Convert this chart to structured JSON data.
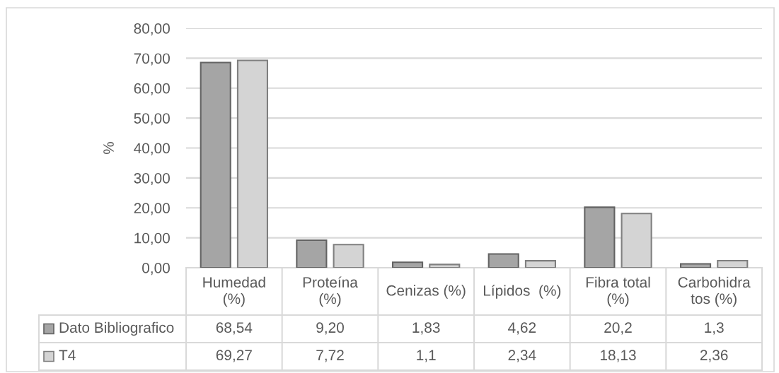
{
  "chart_data": {
    "type": "bar",
    "ylabel": "%",
    "categories": [
      "Humedad\n(%)",
      "Proteína\n(%)",
      "Cenizas (%)",
      "Lípidos  (%)",
      "Fibra total\n(%)",
      "Carbohidra\ntos (%)"
    ],
    "series": [
      {
        "name": "Dato Bibliografico",
        "color": "#a5a5a5",
        "values": [
          68.54,
          9.2,
          1.83,
          4.62,
          20.2,
          1.3
        ],
        "value_labels": [
          "68,54",
          "9,20",
          "1,83",
          "4,62",
          "20,2",
          "1,3"
        ]
      },
      {
        "name": "T4",
        "color": "#d4d4d4",
        "values": [
          69.27,
          7.72,
          1.1,
          2.34,
          18.13,
          2.36
        ],
        "value_labels": [
          "69,27",
          "7,72",
          "1,1",
          "2,34",
          "18,13",
          "2,36"
        ]
      }
    ],
    "ylim": [
      0,
      80
    ],
    "yticks": [
      {
        "value": 0,
        "label": "0,00"
      },
      {
        "value": 10,
        "label": "10,00"
      },
      {
        "value": 20,
        "label": "20,00"
      },
      {
        "value": 30,
        "label": "30,00"
      },
      {
        "value": 40,
        "label": "40,00"
      },
      {
        "value": 50,
        "label": "50,00"
      },
      {
        "value": 60,
        "label": "60,00"
      },
      {
        "value": 70,
        "label": "70,00"
      },
      {
        "value": 80,
        "label": "80,00"
      }
    ],
    "grid": "y",
    "legend": "bottom left"
  }
}
